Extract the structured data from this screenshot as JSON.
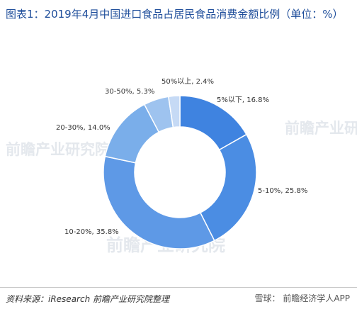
{
  "title": "图表1：2019年4月中国进口食品占居民食品消费金额比例（单位：%）",
  "source": "资料来源：iResearch 前瞻产业研究院整理",
  "watermark": "前瞻产业研究院",
  "xueqiu": {
    "logo": "雪球：",
    "text": "前瞻经济学人APP"
  },
  "chart_data": {
    "type": "pie",
    "donut": true,
    "title": "图表1：2019年4月中国进口食品占居民食品消费金额比例（单位：%）",
    "unit": "%",
    "categories": [
      "5%以下",
      "5-10%",
      "10-20%",
      "20-30%",
      "30-50%",
      "50%以上"
    ],
    "values": [
      16.8,
      25.8,
      35.8,
      14.0,
      5.3,
      2.4
    ],
    "labels": [
      "5%以下, 16.8%",
      "5-10%, 25.8%",
      "10-20%, 35.8%",
      "20-30%, 14.0%",
      "30-50%, 5.3%",
      "50%以上, 2.4%"
    ],
    "colors": [
      "#3f83e0",
      "#4b8de3",
      "#5e99e6",
      "#7aaeea",
      "#9ec3ef",
      "#c6daf5"
    ]
  }
}
